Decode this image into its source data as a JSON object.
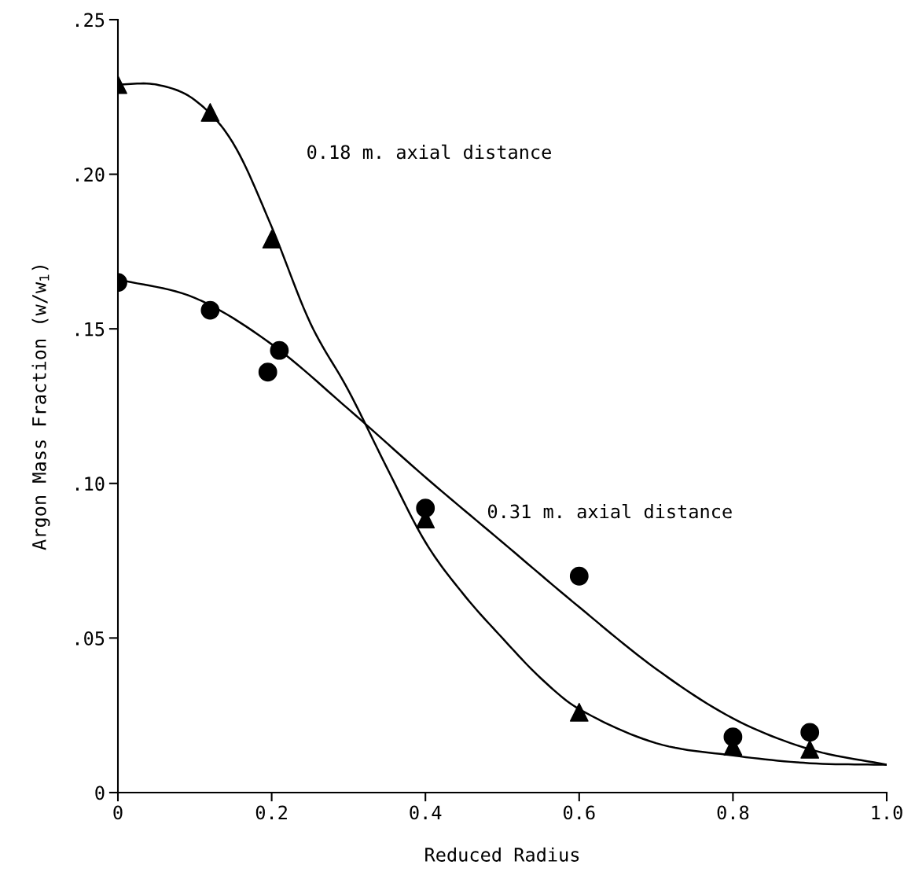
{
  "chart_data": {
    "type": "scatter",
    "xlabel": "Reduced Radius",
    "ylabel": "Argon Mass Fraction (w/w$_{1}$)",
    "xlim": [
      0,
      1.0
    ],
    "ylim": [
      0,
      0.25
    ],
    "xticks": [
      0,
      {
        "value": 0.2,
        "label": "0.2"
      },
      {
        "value": 0.4,
        "label": "0.4"
      },
      {
        "value": 0.6,
        "label": "0.6"
      },
      {
        "value": 0.8,
        "label": "0.8"
      },
      {
        "value": 1.0,
        "label": "1.0"
      }
    ],
    "yticks": [
      0,
      {
        "value": 0.05,
        "label": ".05"
      },
      {
        "value": 0.1,
        "label": ".10"
      },
      {
        "value": 0.15,
        "label": ".15"
      },
      {
        "value": 0.2,
        "label": ".20"
      },
      {
        "value": 0.25,
        "label": ".25"
      }
    ],
    "grid": false,
    "legend": false,
    "series": [
      {
        "marker": "triangle",
        "color": "#000000",
        "x": [
          0,
          0.12,
          0.2,
          0.4,
          0.6,
          0.8,
          0.9
        ],
        "values": [
          0.229,
          0.22,
          0.179,
          0.0885,
          0.026,
          0.015,
          0.014
        ]
      },
      {
        "marker": "circle",
        "color": "#000000",
        "x": [
          0,
          0.12,
          0.195,
          0.21,
          0.4,
          0.6,
          0.8,
          0.9
        ],
        "values": [
          0.165,
          0.156,
          0.136,
          0.143,
          0.092,
          0.07,
          0.018,
          0.0195
        ]
      },
      {
        "type": "line",
        "marker": "none",
        "line_style": "solid",
        "color": "#000000",
        "x": [
          0,
          0.05,
          0.1,
          0.15,
          0.2,
          0.25,
          0.3,
          0.35,
          0.4,
          0.45,
          0.5,
          0.55,
          0.6,
          0.7,
          0.8,
          0.9,
          1.0
        ],
        "values": [
          0.229,
          0.229,
          0.224,
          0.21,
          0.183,
          0.152,
          0.13,
          0.105,
          0.081,
          0.064,
          0.05,
          0.037,
          0.027,
          0.016,
          0.012,
          0.0095,
          0.009
        ]
      },
      {
        "type": "line",
        "marker": "none",
        "line_style": "solid",
        "color": "#000000",
        "x": [
          0,
          0.1,
          0.2,
          0.3,
          0.4,
          0.5,
          0.6,
          0.7,
          0.8,
          0.9,
          1.0
        ],
        "values": [
          0.166,
          0.16,
          0.145,
          0.124,
          0.102,
          0.081,
          0.06,
          0.04,
          0.024,
          0.014,
          0.009
        ]
      }
    ],
    "annotations": [
      "0.18 m. axial distance",
      "0.31 m. axial distance"
    ]
  }
}
